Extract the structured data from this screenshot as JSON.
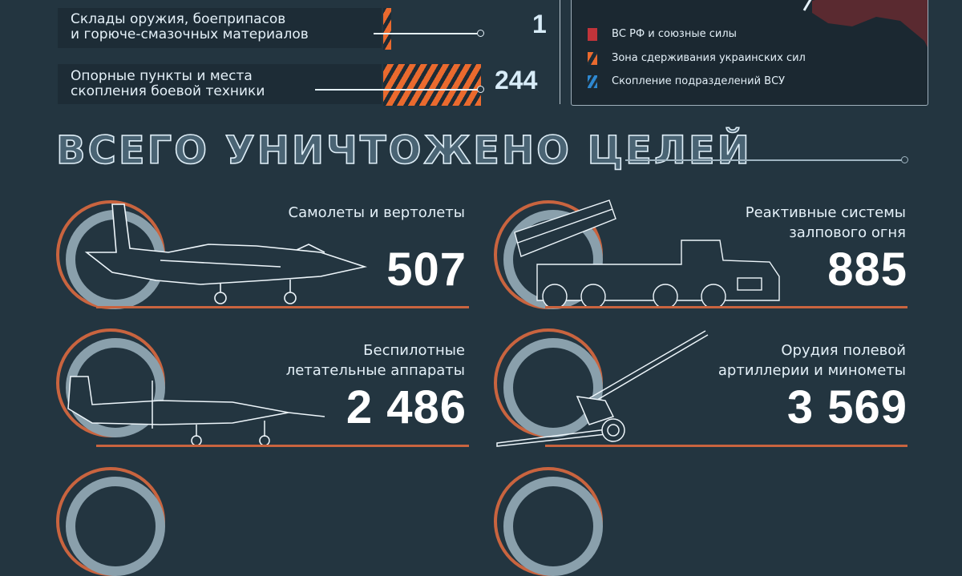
{
  "stats": [
    {
      "label_line1": "Склады оружия, боеприпасов",
      "label_line2": "и горюче-смазочных материалов",
      "value": "1"
    },
    {
      "label_line1": "Опорные пункты и места",
      "label_line2": "скопления боевой техники",
      "value": "244"
    }
  ],
  "legend": {
    "items": [
      {
        "label": "ВС РФ и союзные силы",
        "color": "#c0343a",
        "pattern": "solid"
      },
      {
        "label": "Зона сдерживания украинских сил",
        "color": "#ea6a2e",
        "pattern": "stripes"
      },
      {
        "label": "Скопление подразделений ВСУ",
        "color": "#2e88d0",
        "pattern": "stripes"
      }
    ]
  },
  "section_title": "ВСЕГО УНИЧТОЖЕНО ЦЕЛЕЙ",
  "cards": [
    {
      "label_line1": "Самолеты и вертолеты",
      "label_line2": "",
      "value": "507",
      "icon": "jet-icon"
    },
    {
      "label_line1": "Реактивные системы",
      "label_line2": "залпового огня",
      "value": "885",
      "icon": "mlrs-truck-icon"
    },
    {
      "label_line1": "Беспилотные",
      "label_line2": "летательные аппараты",
      "value": "2 486",
      "icon": "drone-icon"
    },
    {
      "label_line1": "Орудия полевой",
      "label_line2": "артиллерии и минометы",
      "value": "3 569",
      "icon": "howitzer-icon"
    }
  ],
  "colors": {
    "background": "#233540",
    "accent": "#ea6a2e",
    "text": "#dfeef7"
  }
}
